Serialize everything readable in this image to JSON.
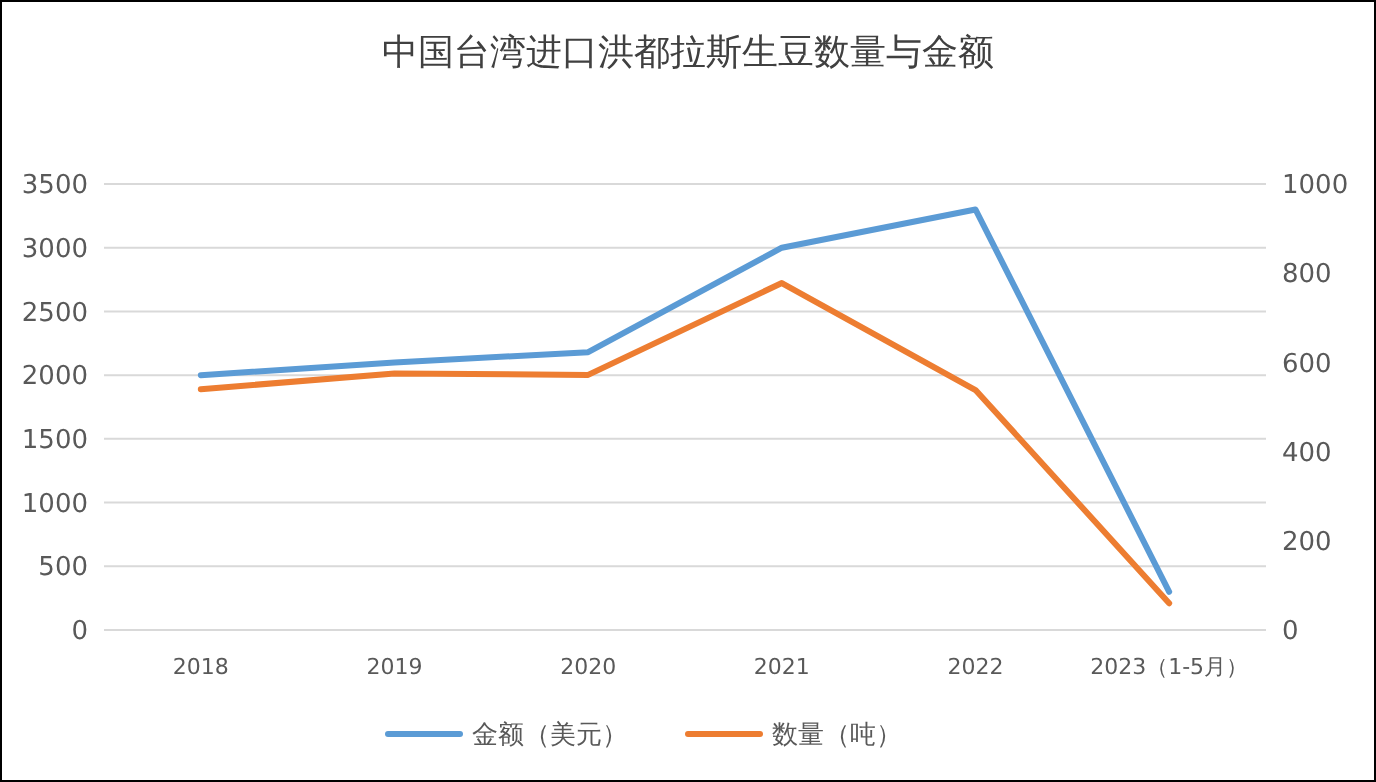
{
  "chart_data": {
    "type": "line",
    "title": "中国台湾进口洪都拉斯生豆数量与金额",
    "categories": [
      "2018",
      "2019",
      "2020",
      "2021",
      "2022",
      "2023（1-5月）"
    ],
    "series": [
      {
        "name": "金额（美元）",
        "color": "#5b9bd5",
        "values": [
          2000,
          2100,
          2180,
          3000,
          3300,
          300
        ]
      },
      {
        "name": "数量（吨）",
        "color": "#ed7d31",
        "values": [
          540,
          575,
          572,
          778,
          538,
          60
        ],
        "axis": "y2"
      }
    ],
    "ylim": [
      0,
      3500
    ],
    "yticks": [
      0,
      500,
      1000,
      1500,
      2000,
      2500,
      3000,
      3500
    ],
    "y2lim": [
      0,
      1000
    ],
    "y2ticks": [
      0,
      200,
      400,
      600,
      800,
      1000
    ],
    "grid": "y",
    "legend": "bottom",
    "marker": "none",
    "line_style": "solid"
  }
}
